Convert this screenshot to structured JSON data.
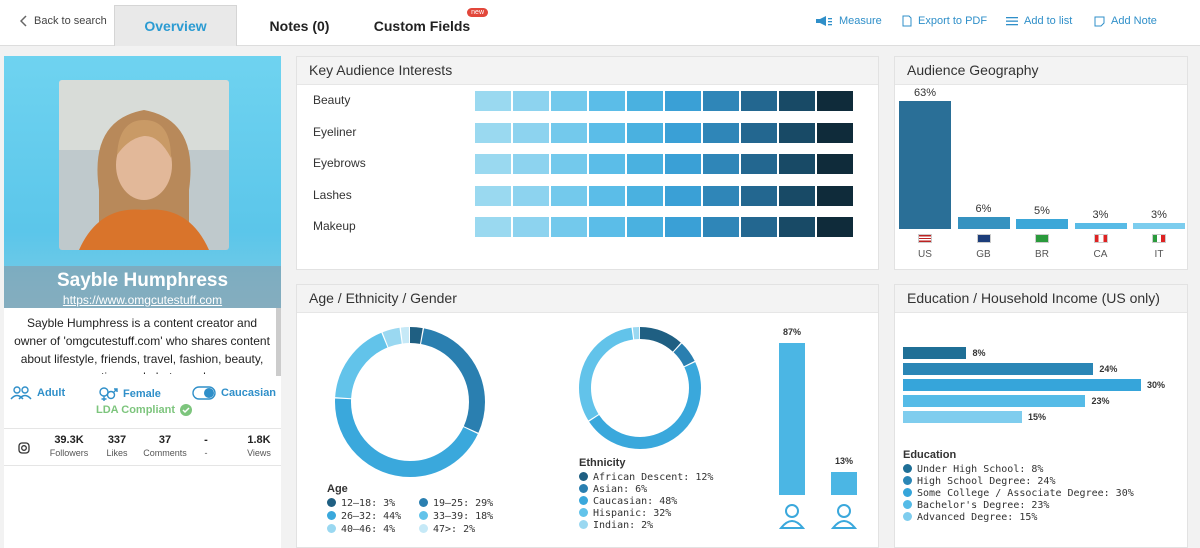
{
  "nav": {
    "back_label": "Back to search",
    "tabs": [
      "Overview",
      "Notes (0)",
      "Custom Fields"
    ],
    "new_badge": "new",
    "actions": [
      "Measure",
      "Export to PDF",
      "Add to list",
      "Add Note"
    ]
  },
  "profile": {
    "name": "Sayble Humphress",
    "url": "https://www.omgcutestuff.com",
    "bio": "Sayble Humphress is a content creator and owner of 'omgcutestuff.com' who shares content about lifestyle, friends, travel, fashion, beauty, cosmetics, and photography.",
    "tags": [
      "Adult",
      "Female",
      "Caucasian"
    ],
    "compliance": "LDA Compliant",
    "stats": [
      {
        "value": "39.3K",
        "label": "Followers"
      },
      {
        "value": "337",
        "label": "Likes"
      },
      {
        "value": "37",
        "label": "Comments"
      },
      {
        "value": "-",
        "label": "-"
      },
      {
        "value": "1.8K",
        "label": "Views"
      }
    ]
  },
  "interests": {
    "title": "Key Audience Interests",
    "items": [
      "Beauty",
      "Eyeliner",
      "Eyebrows",
      "Lashes",
      "Makeup"
    ],
    "scale_colors": [
      "#9ad9f0",
      "#8dd3ef",
      "#73c9ec",
      "#5bbde8",
      "#4ab1e0",
      "#3aa0d6",
      "#2f86b8",
      "#236790",
      "#184a66",
      "#0f2b3a"
    ]
  },
  "geography": {
    "title": "Audience Geography",
    "items": [
      {
        "code": "US",
        "pct": "63%",
        "value": 63,
        "color": "#2a6f97"
      },
      {
        "code": "GB",
        "pct": "6%",
        "value": 6,
        "color": "#3592c0"
      },
      {
        "code": "BR",
        "pct": "5%",
        "value": 5,
        "color": "#3ba7d8"
      },
      {
        "code": "CA",
        "pct": "3%",
        "value": 3,
        "color": "#58bbe6"
      },
      {
        "code": "IT",
        "pct": "3%",
        "value": 3,
        "color": "#7ccdee"
      }
    ]
  },
  "age": {
    "title": "Age / Ethnicity / Gender",
    "heading": "Age",
    "items": [
      {
        "label": "12–18: 3%",
        "value": 3,
        "color": "#1f5f82"
      },
      {
        "label": "19–25: 29%",
        "value": 29,
        "color": "#2a7fb0"
      },
      {
        "label": "26–32: 44%",
        "value": 44,
        "color": "#3aa8dc"
      },
      {
        "label": "33–39: 18%",
        "value": 18,
        "color": "#62c3ea"
      },
      {
        "label": "40–46: 4%",
        "value": 4,
        "color": "#9ad8f1"
      },
      {
        "label": "47>: 2%",
        "value": 2,
        "color": "#c6e9f7"
      }
    ]
  },
  "ethnicity": {
    "heading": "Ethnicity",
    "items": [
      {
        "label": "African Descent: 12%",
        "value": 12,
        "color": "#1f5f82"
      },
      {
        "label": "Asian: 6%",
        "value": 6,
        "color": "#2a7fb0"
      },
      {
        "label": "Caucasian: 48%",
        "value": 48,
        "color": "#3aa8dc"
      },
      {
        "label": "Hispanic: 32%",
        "value": 32,
        "color": "#62c3ea"
      },
      {
        "label": "Indian: 2%",
        "value": 2,
        "color": "#9ad8f1"
      }
    ]
  },
  "gender": {
    "items": [
      {
        "pct": "87%",
        "value": 87,
        "icon": "female-icon"
      },
      {
        "pct": "13%",
        "value": 13,
        "icon": "male-icon"
      }
    ]
  },
  "education": {
    "title": "Education / Household Income (US only)",
    "heading": "Education",
    "items": [
      {
        "label": "Under High School: 8%",
        "pct": "8%",
        "value": 8,
        "color": "#1f6f96"
      },
      {
        "label": "High School Degree: 24%",
        "pct": "24%",
        "value": 24,
        "color": "#2a86b6"
      },
      {
        "label": "Some College / Associate Degree: 30%",
        "pct": "30%",
        "value": 30,
        "color": "#36a5da"
      },
      {
        "label": "Bachelor's Degree: 23%",
        "pct": "23%",
        "value": 23,
        "color": "#55bbe7"
      },
      {
        "label": "Advanced Degree: 15%",
        "pct": "15%",
        "value": 15,
        "color": "#7fcdee"
      }
    ]
  }
}
